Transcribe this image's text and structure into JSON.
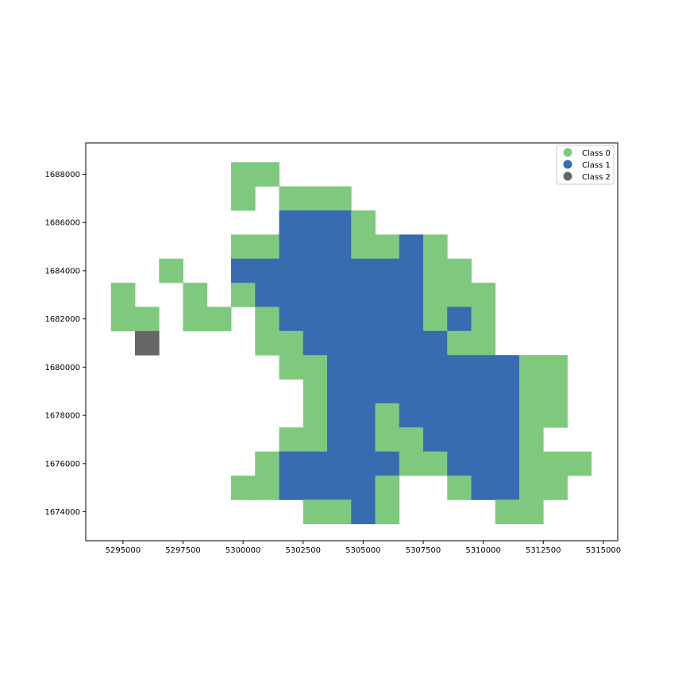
{
  "chart_data": {
    "type": "heatmap",
    "title": "",
    "xlabel": "",
    "ylabel": "",
    "cell_size": 1000,
    "xlim": [
      5293450,
      5315600
    ],
    "ylim": [
      1672800,
      1689300
    ],
    "x_ticks": [
      5295000,
      5297500,
      5300000,
      5302500,
      5305000,
      5307500,
      5310000,
      5312500,
      5315000
    ],
    "y_ticks": [
      1674000,
      1676000,
      1678000,
      1680000,
      1682000,
      1684000,
      1686000,
      1688000
    ],
    "x_tick_labels": [
      "5295000",
      "5297500",
      "5300000",
      "5302500",
      "5305000",
      "5307500",
      "5310000",
      "5312500",
      "5315000"
    ],
    "y_tick_labels": [
      "1674000",
      "1676000",
      "1678000",
      "1680000",
      "1682000",
      "1684000",
      "1686000",
      "1688000"
    ],
    "grid": false,
    "legend_position": "top-right",
    "classes": [
      {
        "name": "Class 0",
        "color": "#7fc97f"
      },
      {
        "name": "Class 1",
        "color": "#386cb0"
      },
      {
        "name": "Class 2",
        "color": "#666666"
      }
    ],
    "rows": [
      {
        "y": 1688000,
        "cells": [
          [
            5300000,
            0
          ],
          [
            5301000,
            0
          ]
        ]
      },
      {
        "y": 1687000,
        "cells": [
          [
            5300000,
            0
          ],
          [
            5302000,
            0
          ],
          [
            5303000,
            0
          ],
          [
            5304000,
            0
          ]
        ]
      },
      {
        "y": 1686000,
        "cells": [
          [
            5302000,
            1
          ],
          [
            5303000,
            1
          ],
          [
            5304000,
            1
          ],
          [
            5305000,
            0
          ]
        ]
      },
      {
        "y": 1685000,
        "cells": [
          [
            5300000,
            0
          ],
          [
            5301000,
            0
          ],
          [
            5302000,
            1
          ],
          [
            5303000,
            1
          ],
          [
            5304000,
            1
          ],
          [
            5305000,
            0
          ],
          [
            5306000,
            0
          ],
          [
            5307000,
            1
          ],
          [
            5308000,
            0
          ]
        ]
      },
      {
        "y": 1684000,
        "cells": [
          [
            5297000,
            0
          ],
          [
            5300000,
            1
          ],
          [
            5301000,
            1
          ],
          [
            5302000,
            1
          ],
          [
            5303000,
            1
          ],
          [
            5304000,
            1
          ],
          [
            5305000,
            1
          ],
          [
            5306000,
            1
          ],
          [
            5307000,
            1
          ],
          [
            5308000,
            0
          ],
          [
            5309000,
            0
          ]
        ]
      },
      {
        "y": 1683000,
        "cells": [
          [
            5295000,
            0
          ],
          [
            5298000,
            0
          ],
          [
            5300000,
            0
          ],
          [
            5301000,
            1
          ],
          [
            5302000,
            1
          ],
          [
            5303000,
            1
          ],
          [
            5304000,
            1
          ],
          [
            5305000,
            1
          ],
          [
            5306000,
            1
          ],
          [
            5307000,
            1
          ],
          [
            5308000,
            0
          ],
          [
            5309000,
            0
          ],
          [
            5310000,
            0
          ]
        ]
      },
      {
        "y": 1682000,
        "cells": [
          [
            5295000,
            0
          ],
          [
            5296000,
            0
          ],
          [
            5298000,
            0
          ],
          [
            5299000,
            0
          ],
          [
            5301000,
            0
          ],
          [
            5302000,
            1
          ],
          [
            5303000,
            1
          ],
          [
            5304000,
            1
          ],
          [
            5305000,
            1
          ],
          [
            5306000,
            1
          ],
          [
            5307000,
            1
          ],
          [
            5308000,
            0
          ],
          [
            5309000,
            1
          ],
          [
            5310000,
            0
          ]
        ]
      },
      {
        "y": 1681000,
        "cells": [
          [
            5296000,
            2
          ],
          [
            5301000,
            0
          ],
          [
            5302000,
            0
          ],
          [
            5303000,
            1
          ],
          [
            5304000,
            1
          ],
          [
            5305000,
            1
          ],
          [
            5306000,
            1
          ],
          [
            5307000,
            1
          ],
          [
            5308000,
            1
          ],
          [
            5309000,
            0
          ],
          [
            5310000,
            0
          ]
        ]
      },
      {
        "y": 1680000,
        "cells": [
          [
            5302000,
            0
          ],
          [
            5303000,
            0
          ],
          [
            5304000,
            1
          ],
          [
            5305000,
            1
          ],
          [
            5306000,
            1
          ],
          [
            5307000,
            1
          ],
          [
            5308000,
            1
          ],
          [
            5309000,
            1
          ],
          [
            5310000,
            1
          ],
          [
            5311000,
            1
          ],
          [
            5312000,
            0
          ],
          [
            5313000,
            0
          ]
        ]
      },
      {
        "y": 1679000,
        "cells": [
          [
            5303000,
            0
          ],
          [
            5304000,
            1
          ],
          [
            5305000,
            1
          ],
          [
            5306000,
            1
          ],
          [
            5307000,
            1
          ],
          [
            5308000,
            1
          ],
          [
            5309000,
            1
          ],
          [
            5310000,
            1
          ],
          [
            5311000,
            1
          ],
          [
            5312000,
            0
          ],
          [
            5313000,
            0
          ]
        ]
      },
      {
        "y": 1678000,
        "cells": [
          [
            5303000,
            0
          ],
          [
            5304000,
            1
          ],
          [
            5305000,
            1
          ],
          [
            5306000,
            0
          ],
          [
            5307000,
            1
          ],
          [
            5308000,
            1
          ],
          [
            5309000,
            1
          ],
          [
            5310000,
            1
          ],
          [
            5311000,
            1
          ],
          [
            5312000,
            0
          ],
          [
            5313000,
            0
          ]
        ]
      },
      {
        "y": 1677000,
        "cells": [
          [
            5302000,
            0
          ],
          [
            5303000,
            0
          ],
          [
            5304000,
            1
          ],
          [
            5305000,
            1
          ],
          [
            5306000,
            0
          ],
          [
            5307000,
            0
          ],
          [
            5308000,
            1
          ],
          [
            5309000,
            1
          ],
          [
            5310000,
            1
          ],
          [
            5311000,
            1
          ],
          [
            5312000,
            0
          ]
        ]
      },
      {
        "y": 1676000,
        "cells": [
          [
            5301000,
            0
          ],
          [
            5302000,
            1
          ],
          [
            5303000,
            1
          ],
          [
            5304000,
            1
          ],
          [
            5305000,
            1
          ],
          [
            5306000,
            1
          ],
          [
            5307000,
            0
          ],
          [
            5308000,
            0
          ],
          [
            5309000,
            1
          ],
          [
            5310000,
            1
          ],
          [
            5311000,
            1
          ],
          [
            5312000,
            0
          ],
          [
            5313000,
            0
          ],
          [
            5314000,
            0
          ]
        ]
      },
      {
        "y": 1675000,
        "cells": [
          [
            5300000,
            0
          ],
          [
            5301000,
            0
          ],
          [
            5302000,
            1
          ],
          [
            5303000,
            1
          ],
          [
            5304000,
            1
          ],
          [
            5305000,
            1
          ],
          [
            5306000,
            0
          ],
          [
            5309000,
            0
          ],
          [
            5310000,
            1
          ],
          [
            5311000,
            1
          ],
          [
            5312000,
            0
          ],
          [
            5313000,
            0
          ]
        ]
      },
      {
        "y": 1674000,
        "cells": [
          [
            5303000,
            0
          ],
          [
            5304000,
            0
          ],
          [
            5305000,
            1
          ],
          [
            5306000,
            0
          ],
          [
            5311000,
            0
          ],
          [
            5312000,
            0
          ]
        ]
      }
    ]
  }
}
